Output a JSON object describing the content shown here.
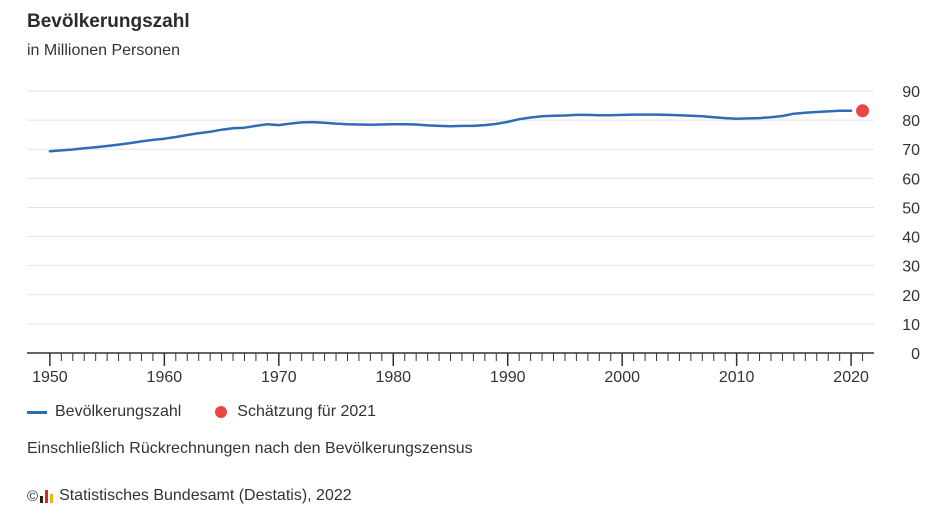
{
  "chart_data": {
    "type": "line",
    "title": "Bevölkerungszahl",
    "subtitle": "in Millionen Personen",
    "xlim": [
      1948,
      2022
    ],
    "ylim": [
      0,
      90
    ],
    "x_ticks": [
      1950,
      1960,
      1970,
      1980,
      1990,
      2000,
      2010,
      2020
    ],
    "y_ticks": [
      0,
      10,
      20,
      30,
      40,
      50,
      60,
      70,
      80,
      90
    ],
    "grid": true,
    "legend_position": "bottom-left",
    "series": [
      {
        "name": "Bevölkerungszahl",
        "color": "#2e6db4",
        "x": [
          1950,
          1951,
          1952,
          1953,
          1954,
          1955,
          1956,
          1957,
          1958,
          1959,
          1960,
          1961,
          1962,
          1963,
          1964,
          1965,
          1966,
          1967,
          1968,
          1969,
          1970,
          1971,
          1972,
          1973,
          1974,
          1975,
          1976,
          1977,
          1978,
          1979,
          1980,
          1981,
          1982,
          1983,
          1984,
          1985,
          1986,
          1987,
          1988,
          1989,
          1990,
          1991,
          1992,
          1993,
          1994,
          1995,
          1996,
          1997,
          1998,
          1999,
          2000,
          2001,
          2002,
          2003,
          2004,
          2005,
          2006,
          2007,
          2008,
          2009,
          2010,
          2011,
          2012,
          2013,
          2014,
          2015,
          2016,
          2017,
          2018,
          2019,
          2020
        ],
        "values": [
          69.3,
          69.6,
          69.9,
          70.3,
          70.7,
          71.1,
          71.6,
          72.1,
          72.7,
          73.2,
          73.6,
          74.2,
          74.9,
          75.5,
          76.0,
          76.7,
          77.2,
          77.4,
          78.0,
          78.6,
          78.3,
          78.8,
          79.2,
          79.3,
          79.1,
          78.8,
          78.6,
          78.5,
          78.4,
          78.5,
          78.6,
          78.6,
          78.5,
          78.2,
          78.0,
          77.9,
          78.0,
          78.0,
          78.3,
          78.7,
          79.4,
          80.3,
          80.9,
          81.3,
          81.5,
          81.6,
          81.8,
          81.8,
          81.7,
          81.7,
          81.8,
          81.9,
          81.9,
          81.9,
          81.8,
          81.7,
          81.5,
          81.3,
          81.0,
          80.7,
          80.5,
          80.6,
          80.7,
          81.0,
          81.4,
          82.2,
          82.5,
          82.8,
          83.0,
          83.2,
          83.2
        ]
      },
      {
        "name": "Schätzung für 2021",
        "color": "#ef4444",
        "x": [
          2021
        ],
        "values": [
          83.2
        ]
      }
    ],
    "note": "Einschließlich Rückrechnungen nach den Bevölkerungszensus",
    "source": "Statistisches Bundesamt (Destatis), 2022"
  },
  "legend": {
    "line_label": "Bevölkerungszahl",
    "dot_label": "Schätzung für 2021"
  },
  "footer": {
    "copyright": "©",
    "source": "Statistisches Bundesamt (Destatis), 2022"
  },
  "colors": {
    "line": "#2e6db4",
    "estimate": "#ef4444",
    "grid": "#e3e3e3",
    "axis": "#333333"
  }
}
